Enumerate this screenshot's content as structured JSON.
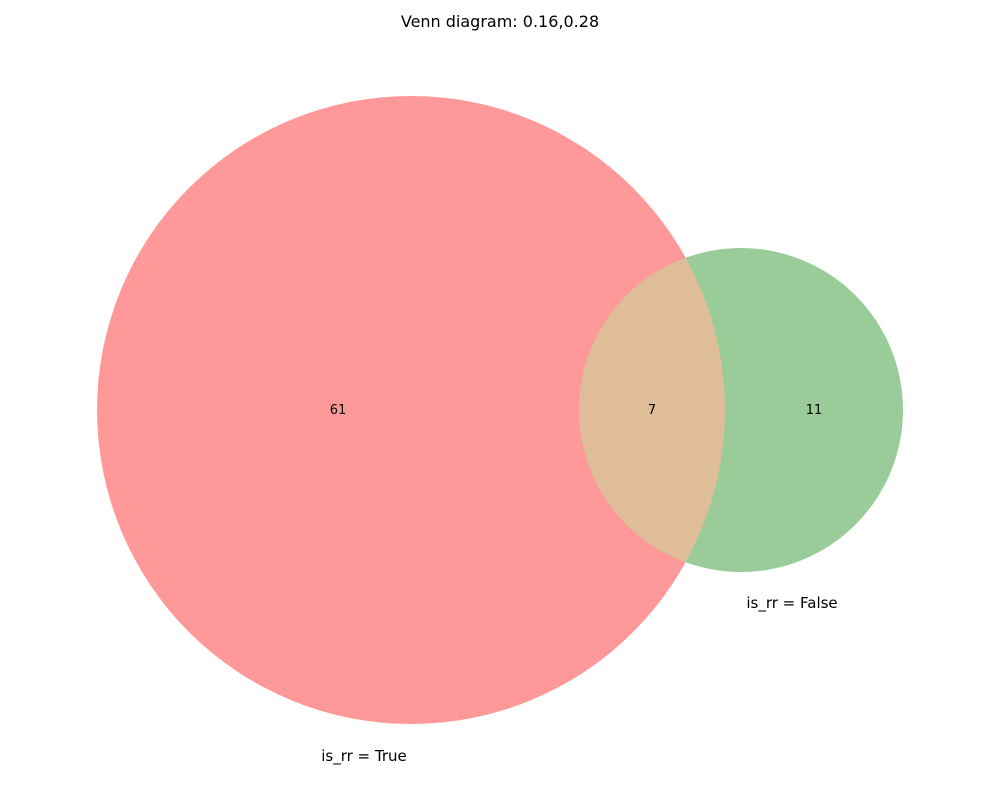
{
  "title": "Venn diagram: 0.16,0.28",
  "sets": [
    {
      "name": "is_rr = True",
      "only_count": "61",
      "color": "#ff9999"
    },
    {
      "name": "is_rr = False",
      "only_count": "11",
      "color": "#99cc99"
    }
  ],
  "intersection": {
    "count": "7",
    "color": "#dfbd99"
  }
}
